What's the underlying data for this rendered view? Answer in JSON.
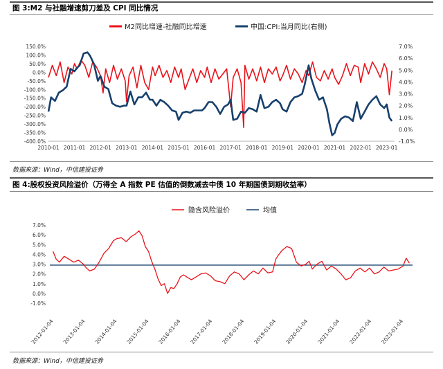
{
  "figures": [
    {
      "title": "图 3:M2 与社融增速剪刀差及 CPI 同比情况",
      "source": "数据来源：Wind，中信建投证券"
    },
    {
      "title": "图 4:股权投资风险溢价（万得全 A 指数 PE 估值的倒数减去中债 10 年期国债到期收益率）",
      "source": "数据来源：Wind，中信建投证券"
    }
  ],
  "chart_data": [
    {
      "type": "line",
      "title": "",
      "x_ticks": [
        "2010-01",
        "2011-01",
        "2012-01",
        "2013-01",
        "2014-01",
        "2015-01",
        "2016-01",
        "2017-01",
        "2018-01",
        "2019-01",
        "2020-01",
        "2021-01",
        "2022-01",
        "2023-01"
      ],
      "left_axis_ticks": [
        "150.0%",
        "100.0%",
        "50.0%",
        "0.0%",
        "-50.0%",
        "-100.0%",
        "-150.0%",
        "-200.0%",
        "-250.0%",
        "-300.0%",
        "-350.0%",
        "-400.0%"
      ],
      "right_axis_ticks": [
        "7.0%",
        "6.0%",
        "5.0%",
        "4.0%",
        "3.0%",
        "2.0%",
        "1.0%",
        "0.0%",
        "-1.0%"
      ],
      "ylim_left": [
        -400,
        150
      ],
      "ylim_right": [
        -1,
        7
      ],
      "legend_position": "top",
      "series": [
        {
          "name": "M2同比增速-社融同比增速",
          "axis": "left",
          "color": "#e8141b",
          "x": [
            2010.0,
            2010.15,
            2010.3,
            2010.45,
            2010.6,
            2010.75,
            2010.9,
            2011.0,
            2011.1,
            2011.25,
            2011.4,
            2011.55,
            2011.7,
            2011.85,
            2012.0,
            2012.1,
            2012.2,
            2012.35,
            2012.5,
            2012.65,
            2012.8,
            2012.95,
            2013.0,
            2013.1,
            2013.25,
            2013.4,
            2013.55,
            2013.7,
            2013.85,
            2014.0,
            2014.1,
            2014.25,
            2014.4,
            2014.55,
            2014.7,
            2014.85,
            2015.0,
            2015.1,
            2015.25,
            2015.4,
            2015.55,
            2015.7,
            2015.85,
            2016.0,
            2016.1,
            2016.25,
            2016.4,
            2016.55,
            2016.7,
            2016.85,
            2017.0,
            2017.1,
            2017.25,
            2017.4,
            2017.5,
            2017.55,
            2017.7,
            2017.85,
            2018.0,
            2018.15,
            2018.3,
            2018.45,
            2018.6,
            2018.75,
            2018.9,
            2019.0,
            2019.15,
            2019.3,
            2019.45,
            2019.6,
            2019.75,
            2019.9,
            2020.0,
            2020.15,
            2020.3,
            2020.45,
            2020.6,
            2020.75,
            2020.9,
            2021.0,
            2021.15,
            2021.3,
            2021.45,
            2021.6,
            2021.75,
            2021.9,
            2022.0,
            2022.15,
            2022.3,
            2022.45,
            2022.6,
            2022.75,
            2022.9,
            2023.0,
            2023.1,
            2023.2
          ],
          "values": [
            -30,
            40,
            -20,
            60,
            -60,
            30,
            -10,
            50,
            20,
            70,
            40,
            -30,
            60,
            30,
            -20,
            -120,
            20,
            -60,
            40,
            -40,
            20,
            -50,
            -170,
            -20,
            30,
            -90,
            40,
            -60,
            -100,
            30,
            -20,
            40,
            -30,
            10,
            -60,
            30,
            -30,
            20,
            -100,
            -40,
            20,
            -60,
            10,
            -30,
            30,
            -60,
            20,
            -40,
            -10,
            20,
            -200,
            -30,
            20,
            -60,
            -320,
            40,
            -40,
            20,
            -50,
            30,
            -60,
            20,
            -10,
            30,
            -50,
            -20,
            40,
            -40,
            20,
            -10,
            -60,
            10,
            -20,
            60,
            -30,
            -50,
            10,
            -40,
            20,
            -30,
            -70,
            -20,
            50,
            -20,
            40,
            30,
            -60,
            50,
            -10,
            60,
            20,
            -30,
            50,
            20,
            -130,
            10
          ]
        },
        {
          "name": "中国:CPI:当月同比(右侧)",
          "axis": "right",
          "color": "#17406d",
          "x": [
            2010.0,
            2010.1,
            2010.25,
            2010.4,
            2010.55,
            2010.7,
            2010.85,
            2011.0,
            2011.1,
            2011.2,
            2011.35,
            2011.5,
            2011.6,
            2011.75,
            2011.9,
            2012.0,
            2012.15,
            2012.3,
            2012.45,
            2012.6,
            2012.75,
            2012.9,
            2013.0,
            2013.15,
            2013.3,
            2013.45,
            2013.6,
            2013.75,
            2013.9,
            2014.0,
            2014.15,
            2014.3,
            2014.45,
            2014.6,
            2014.75,
            2014.9,
            2015.0,
            2015.15,
            2015.3,
            2015.45,
            2015.6,
            2015.75,
            2015.9,
            2016.0,
            2016.15,
            2016.3,
            2016.45,
            2016.6,
            2016.75,
            2016.9,
            2017.0,
            2017.1,
            2017.25,
            2017.4,
            2017.55,
            2017.7,
            2017.85,
            2018.0,
            2018.15,
            2018.3,
            2018.45,
            2018.6,
            2018.75,
            2018.9,
            2019.0,
            2019.15,
            2019.3,
            2019.45,
            2019.6,
            2019.75,
            2019.85,
            2020.0,
            2020.1,
            2020.25,
            2020.4,
            2020.55,
            2020.7,
            2020.8,
            2020.9,
            2021.0,
            2021.1,
            2021.25,
            2021.4,
            2021.55,
            2021.7,
            2021.85,
            2022.0,
            2022.15,
            2022.3,
            2022.45,
            2022.6,
            2022.75,
            2022.9,
            2023.0,
            2023.1,
            2023.2
          ],
          "values": [
            1.5,
            2.7,
            2.4,
            3.1,
            3.3,
            3.6,
            5.1,
            4.9,
            5.2,
            5.4,
            6.4,
            6.5,
            6.2,
            5.5,
            4.1,
            4.5,
            3.6,
            3.4,
            2.2,
            2.0,
            1.9,
            2.0,
            2.0,
            3.2,
            2.1,
            2.7,
            2.7,
            3.1,
            2.5,
            2.5,
            2.0,
            2.5,
            2.3,
            2.0,
            1.6,
            1.5,
            0.8,
            1.4,
            1.5,
            1.4,
            1.6,
            1.6,
            1.6,
            1.8,
            2.3,
            2.3,
            1.9,
            1.3,
            1.9,
            2.1,
            2.5,
            0.8,
            0.9,
            1.5,
            1.4,
            1.8,
            1.7,
            1.5,
            2.9,
            1.8,
            1.9,
            2.3,
            2.5,
            2.2,
            1.7,
            1.5,
            2.3,
            2.7,
            2.8,
            3.0,
            3.8,
            5.4,
            4.3,
            3.3,
            2.5,
            2.7,
            1.7,
            0.5,
            -0.5,
            -0.3,
            0.4,
            0.9,
            1.1,
            1.0,
            0.7,
            2.3,
            0.9,
            1.5,
            2.1,
            2.5,
            2.8,
            2.1,
            1.8,
            2.1,
            1.0,
            0.7
          ]
        }
      ]
    },
    {
      "type": "line",
      "title": "",
      "x_ticks": [
        "2012-01-04",
        "2013-01-04",
        "2014-01-04",
        "2015-01-04",
        "2016-01-04",
        "2017-01-04",
        "2018-01-04",
        "2019-01-04",
        "2020-01-04",
        "2021-01-04",
        "2022-01-04",
        "2023-01-04"
      ],
      "y_ticks": [
        "7.0%",
        "6.0%",
        "5.0%",
        "4.0%",
        "3.0%",
        "2.0%",
        "1.0%",
        "0.0%",
        "-1.0%"
      ],
      "ylim": [
        -1,
        7
      ],
      "legend_position": "top",
      "series": [
        {
          "name": "隐含风险溢价",
          "color": "#e8141b",
          "x": [
            2012.0,
            2012.1,
            2012.2,
            2012.35,
            2012.5,
            2012.65,
            2012.8,
            2012.95,
            2013.05,
            2013.15,
            2013.3,
            2013.45,
            2013.6,
            2013.75,
            2013.9,
            2014.0,
            2014.15,
            2014.3,
            2014.45,
            2014.6,
            2014.7,
            2014.8,
            2014.9,
            2015.0,
            2015.1,
            2015.2,
            2015.3,
            2015.4,
            2015.5,
            2015.6,
            2015.7,
            2015.8,
            2015.9,
            2016.0,
            2016.1,
            2016.2,
            2016.35,
            2016.5,
            2016.65,
            2016.8,
            2016.95,
            2017.1,
            2017.25,
            2017.4,
            2017.55,
            2017.7,
            2017.85,
            2018.0,
            2018.15,
            2018.3,
            2018.45,
            2018.6,
            2018.75,
            2018.9,
            2019.0,
            2019.08,
            2019.2,
            2019.35,
            2019.5,
            2019.65,
            2019.8,
            2019.95,
            2020.05,
            2020.15,
            2020.3,
            2020.45,
            2020.6,
            2020.75,
            2020.9,
            2021.05,
            2021.2,
            2021.35,
            2021.5,
            2021.65,
            2021.8,
            2021.95,
            2022.1,
            2022.25,
            2022.4,
            2022.55,
            2022.7,
            2022.85,
            2023.0,
            2023.1,
            2023.2
          ],
          "values": [
            4.3,
            3.5,
            3.2,
            3.8,
            3.5,
            3.2,
            3.4,
            3.0,
            2.6,
            2.3,
            2.5,
            3.2,
            4.1,
            4.6,
            5.4,
            5.6,
            5.7,
            5.3,
            5.8,
            6.1,
            6.4,
            5.9,
            4.8,
            4.3,
            3.3,
            2.5,
            1.5,
            0.8,
            1.0,
            0.0,
            0.6,
            0.5,
            1.0,
            1.7,
            1.9,
            1.7,
            1.4,
            1.7,
            2.0,
            2.1,
            1.8,
            1.3,
            1.2,
            1.0,
            1.8,
            2.2,
            2.0,
            1.4,
            1.9,
            2.3,
            2.0,
            2.6,
            2.1,
            2.2,
            3.5,
            3.9,
            4.4,
            4.8,
            4.6,
            3.2,
            2.8,
            3.0,
            3.3,
            2.5,
            3.0,
            3.3,
            2.4,
            2.8,
            2.5,
            2.0,
            1.4,
            1.6,
            2.3,
            2.6,
            2.2,
            2.6,
            2.0,
            2.2,
            2.7,
            2.3,
            2.4,
            2.5,
            2.8,
            3.6,
            3.1
          ]
        },
        {
          "name": "均值",
          "color": "#17406d",
          "constant": 2.9
        }
      ]
    }
  ]
}
